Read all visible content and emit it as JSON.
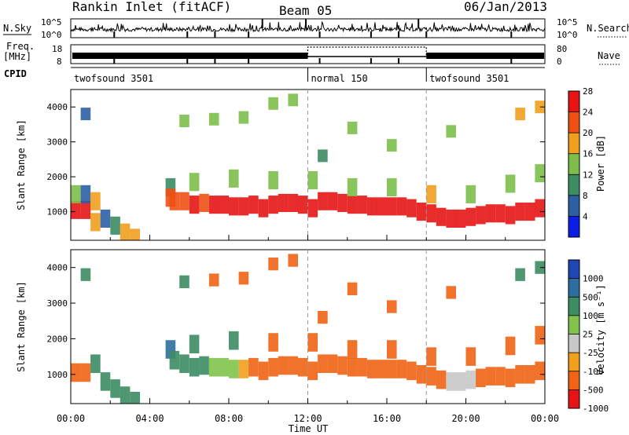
{
  "header": {
    "station": "Rankin Inlet (fitACF)",
    "beam": "Beam 05",
    "date": "06/Jan/2013"
  },
  "strips": {
    "nsky_label": "N.Sky",
    "nsky_ticks": [
      "10^5",
      "10^0"
    ],
    "nsearch_label": "N.Search",
    "nsearch_ticks": [
      "10^5",
      "10^0"
    ],
    "freq_label": "Freq.",
    "freq_unit": "[MHz]",
    "freq_ticks": [
      "18",
      "8"
    ],
    "nave_label": "Nave",
    "nave_ticks": [
      "80",
      "0"
    ],
    "cpid_label": "CPID",
    "cpid_segments": [
      {
        "label": "twofsound 3501",
        "start_hr": 0,
        "end_hr": 12
      },
      {
        "label": "normal 150",
        "start_hr": 12,
        "end_hr": 18
      },
      {
        "label": "twofsound 3501",
        "start_hr": 18,
        "end_hr": 24
      }
    ],
    "change_hours": [
      12,
      18
    ]
  },
  "axes": {
    "ylabel": "Slant Range [km]",
    "xlabel": "Time UT",
    "y_ticks": [
      "1000",
      "2000",
      "3000",
      "4000"
    ],
    "x_ticks": [
      "00:00",
      "04:00",
      "08:00",
      "12:00",
      "16:00",
      "20:00",
      "00:00"
    ]
  },
  "colorbars": {
    "power": {
      "label": "Power [dB]",
      "tick_labels": [
        "4",
        "8",
        "12",
        "16",
        "20",
        "24",
        "28"
      ],
      "colors": [
        "#0a1ee6",
        "#2d5fa5",
        "#3c8c64",
        "#7dbe4b",
        "#f0a01e",
        "#f05014",
        "#e61414"
      ]
    },
    "velocity": {
      "label": "Velocity [m s⁻¹]",
      "tick_labels": [
        "1000",
        "500",
        "100",
        "25",
        "-25",
        "-100",
        "-500",
        "-1000"
      ],
      "colors": [
        "#1e46b4",
        "#2d6ea0",
        "#3c8c64",
        "#82c34b",
        "#c8c8c8",
        "#f0a01e",
        "#f06414",
        "#e61414"
      ]
    }
  },
  "chart_data": [
    {
      "type": "heatmap",
      "name": "Power [dB]",
      "x_unit": "hours UT",
      "y_unit": "km",
      "xlim": [
        0,
        24
      ],
      "ylim": [
        180,
        4500
      ],
      "cells": [
        [
          0.0,
          1050,
          27
        ],
        [
          0.5,
          1050,
          27
        ],
        [
          0.0,
          1500,
          14
        ],
        [
          0.5,
          1500,
          9
        ],
        [
          1.0,
          1300,
          20
        ],
        [
          1.0,
          700,
          18
        ],
        [
          1.5,
          800,
          6
        ],
        [
          2.0,
          600,
          12
        ],
        [
          2.5,
          400,
          18
        ],
        [
          3.0,
          250,
          20
        ],
        [
          4.8,
          1700,
          12
        ],
        [
          4.8,
          1400,
          22
        ],
        [
          5.0,
          1300,
          24
        ],
        [
          5.5,
          1300,
          25
        ],
        [
          6.0,
          1200,
          26
        ],
        [
          6.5,
          1250,
          25
        ],
        [
          7.0,
          1200,
          27
        ],
        [
          7.5,
          1200,
          26
        ],
        [
          8.0,
          1150,
          27
        ],
        [
          8.5,
          1150,
          26
        ],
        [
          9.0,
          1200,
          27
        ],
        [
          9.5,
          1100,
          28
        ],
        [
          10.0,
          1200,
          28
        ],
        [
          10.5,
          1250,
          28
        ],
        [
          11.0,
          1250,
          28
        ],
        [
          11.5,
          1200,
          28
        ],
        [
          12.0,
          1100,
          27
        ],
        [
          12.5,
          1300,
          28
        ],
        [
          13.0,
          1300,
          28
        ],
        [
          13.5,
          1250,
          28
        ],
        [
          14.0,
          1200,
          28
        ],
        [
          14.5,
          1200,
          28
        ],
        [
          15.0,
          1150,
          28
        ],
        [
          15.5,
          1150,
          28
        ],
        [
          16.0,
          1150,
          28
        ],
        [
          16.5,
          1150,
          28
        ],
        [
          17.0,
          1100,
          28
        ],
        [
          17.5,
          1000,
          28
        ],
        [
          18.0,
          950,
          28
        ],
        [
          18.5,
          850,
          28
        ],
        [
          19.0,
          800,
          28
        ],
        [
          19.5,
          800,
          28
        ],
        [
          20.0,
          850,
          28
        ],
        [
          20.5,
          900,
          28
        ],
        [
          21.0,
          950,
          27
        ],
        [
          21.5,
          950,
          27
        ],
        [
          22.0,
          900,
          27
        ],
        [
          22.5,
          1000,
          27
        ],
        [
          23.0,
          1000,
          27
        ],
        [
          23.5,
          1100,
          27
        ],
        [
          6.0,
          1850,
          16
        ],
        [
          8.0,
          1950,
          14
        ],
        [
          10.0,
          1900,
          17
        ],
        [
          12.0,
          1900,
          15
        ],
        [
          14.0,
          1700,
          15
        ],
        [
          16.0,
          1700,
          15
        ],
        [
          18.0,
          1500,
          18
        ],
        [
          20.0,
          1500,
          15
        ],
        [
          22.0,
          1800,
          17
        ],
        [
          23.5,
          2100,
          14
        ],
        [
          5.5,
          3600,
          16
        ],
        [
          7.0,
          3650,
          17
        ],
        [
          8.5,
          3700,
          15
        ],
        [
          10.0,
          4100,
          16
        ],
        [
          11.0,
          4200,
          15
        ],
        [
          22.5,
          3800,
          20
        ],
        [
          23.5,
          4000,
          18
        ],
        [
          19.0,
          3300,
          16
        ],
        [
          14.0,
          3400,
          14
        ],
        [
          0.5,
          3800,
          8
        ],
        [
          16.0,
          2900,
          15
        ],
        [
          12.5,
          2600,
          12
        ]
      ]
    },
    {
      "type": "heatmap",
      "name": "Velocity [m s⁻¹]",
      "x_unit": "hours UT",
      "y_unit": "km",
      "xlim": [
        0,
        24
      ],
      "ylim": [
        180,
        4500
      ],
      "cells": [
        [
          0.0,
          1050,
          -150
        ],
        [
          0.5,
          1050,
          -150
        ],
        [
          1.0,
          1300,
          120
        ],
        [
          1.5,
          800,
          200
        ],
        [
          2.0,
          600,
          100
        ],
        [
          2.5,
          400,
          150
        ],
        [
          3.0,
          250,
          200
        ],
        [
          4.8,
          1700,
          300
        ],
        [
          5.0,
          1400,
          150
        ],
        [
          5.5,
          1300,
          100
        ],
        [
          6.0,
          1200,
          120
        ],
        [
          6.5,
          1250,
          80
        ],
        [
          7.0,
          1200,
          60
        ],
        [
          7.5,
          1200,
          50
        ],
        [
          8.0,
          1150,
          40
        ],
        [
          8.5,
          1150,
          -50
        ],
        [
          9.0,
          1200,
          -80
        ],
        [
          9.5,
          1100,
          -100
        ],
        [
          10.0,
          1200,
          -120
        ],
        [
          10.5,
          1250,
          -150
        ],
        [
          11.0,
          1250,
          -150
        ],
        [
          11.5,
          1200,
          -180
        ],
        [
          12.0,
          1100,
          -150
        ],
        [
          12.5,
          1300,
          -150
        ],
        [
          13.0,
          1300,
          -180
        ],
        [
          13.5,
          1250,
          -180
        ],
        [
          14.0,
          1200,
          -200
        ],
        [
          14.5,
          1200,
          -200
        ],
        [
          15.0,
          1150,
          -200
        ],
        [
          15.5,
          1150,
          -200
        ],
        [
          16.0,
          1150,
          -220
        ],
        [
          16.5,
          1150,
          -200
        ],
        [
          17.0,
          1100,
          -200
        ],
        [
          17.5,
          1000,
          -180
        ],
        [
          18.0,
          950,
          -150
        ],
        [
          18.5,
          850,
          -150
        ],
        [
          19.0,
          800,
          0
        ],
        [
          19.5,
          800,
          0
        ],
        [
          20.0,
          850,
          0
        ],
        [
          20.5,
          900,
          -150
        ],
        [
          21.0,
          950,
          -150
        ],
        [
          21.5,
          950,
          -200
        ],
        [
          22.0,
          900,
          -150
        ],
        [
          22.5,
          1000,
          -150
        ],
        [
          23.0,
          1000,
          -180
        ],
        [
          23.5,
          1100,
          -200
        ],
        [
          6.0,
          1850,
          120
        ],
        [
          8.0,
          1950,
          80
        ],
        [
          10.0,
          1900,
          -120
        ],
        [
          12.0,
          1900,
          -150
        ],
        [
          14.0,
          1700,
          -150
        ],
        [
          16.0,
          1700,
          -180
        ],
        [
          18.0,
          1500,
          -150
        ],
        [
          20.0,
          1500,
          -150
        ],
        [
          22.0,
          1800,
          -200
        ],
        [
          23.5,
          2100,
          -300
        ],
        [
          5.5,
          3600,
          120
        ],
        [
          7.0,
          3650,
          -100
        ],
        [
          8.5,
          3700,
          -150
        ],
        [
          10.0,
          4100,
          -150
        ],
        [
          11.0,
          4200,
          -180
        ],
        [
          22.5,
          3800,
          200
        ],
        [
          23.5,
          4000,
          150
        ],
        [
          19.0,
          3300,
          -100
        ],
        [
          14.0,
          3400,
          -120
        ],
        [
          0.5,
          3800,
          100
        ],
        [
          16.0,
          2900,
          -150
        ],
        [
          12.5,
          2600,
          -100
        ]
      ]
    }
  ]
}
